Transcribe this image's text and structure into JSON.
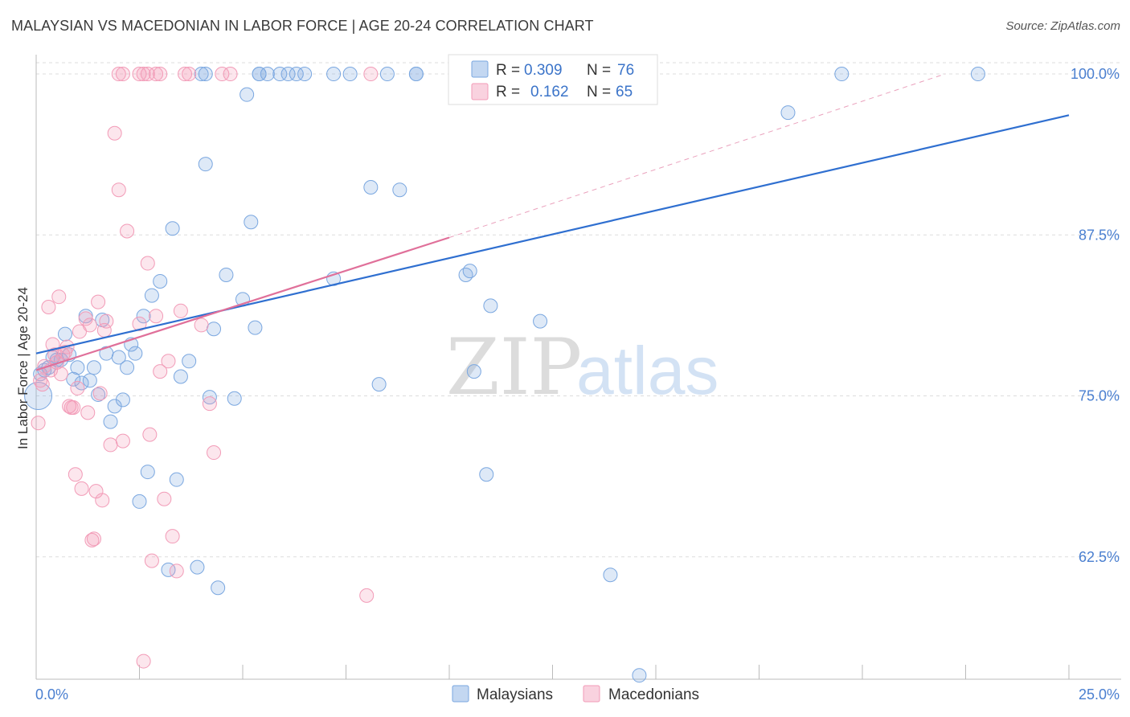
{
  "title": "MALAYSIAN VS MACEDONIAN IN LABOR FORCE | AGE 20-24 CORRELATION CHART",
  "source": "Source: ZipAtlas.com",
  "watermark": {
    "zip": "ZIP",
    "atlas": "atlas"
  },
  "chart_data": {
    "type": "scatter",
    "xlabel": "",
    "ylabel": "In Labor Force | Age 20-24",
    "xlim": [
      0,
      25
    ],
    "ylim": [
      53,
      101.5
    ],
    "x_tick_labels": [
      "0.0%",
      "25.0%"
    ],
    "y_ticks": [
      62.5,
      75.0,
      87.5,
      100.0
    ],
    "y_tick_labels": [
      "62.5%",
      "75.0%",
      "87.5%",
      "100.0%"
    ],
    "colors": {
      "malaysians": "#7aa7e0",
      "macedonians": "#f29bb7",
      "blue_line": "#2f6fd0",
      "pink_line": "#e0709a"
    },
    "legend": {
      "r_label": "R =",
      "n_label": "N =",
      "rows": [
        {
          "series": "Malaysians",
          "r": "0.309",
          "n": "76"
        },
        {
          "series": "Macedonians",
          "r": "0.162",
          "n": "65"
        }
      ]
    },
    "bottom_legend": [
      "Malaysians",
      "Macedonians"
    ],
    "trend_lines": [
      {
        "series": "Malaysians",
        "x": [
          0,
          25
        ],
        "y": [
          78.3,
          96.8
        ]
      },
      {
        "series": "Macedonians",
        "x": [
          0,
          10
        ],
        "y": [
          77.0,
          87.3
        ]
      },
      {
        "series": "Macedonians-extended",
        "x": [
          10,
          22
        ],
        "y": [
          87.3,
          100.0
        ]
      }
    ],
    "series": [
      {
        "name": "Malaysians",
        "x": [
          0.1,
          0.2,
          0.3,
          0.4,
          0.5,
          0.6,
          0.7,
          0.8,
          0.9,
          1.0,
          1.1,
          1.2,
          1.3,
          1.4,
          1.5,
          1.6,
          1.7,
          1.8,
          1.9,
          2.0,
          2.1,
          2.2,
          2.3,
          2.4,
          2.5,
          2.6,
          2.7,
          2.8,
          3.0,
          3.2,
          3.3,
          3.4,
          3.5,
          3.7,
          3.9,
          4.1,
          4.2,
          4.3,
          4.4,
          4.6,
          4.8,
          5.0,
          5.1,
          5.2,
          5.3,
          5.4,
          5.6,
          5.9,
          6.1,
          6.3,
          6.5,
          7.2,
          7.6,
          8.1,
          8.3,
          8.5,
          8.8,
          9.2,
          10.4,
          10.5,
          10.6,
          10.9,
          11.0,
          11.5,
          12.2,
          13.9,
          14.6,
          18.2,
          19.5,
          22.8,
          4.0,
          4.1,
          5.4,
          7.2,
          9.2,
          0.05
        ],
        "y": [
          76.7,
          77.0,
          77.2,
          78.0,
          77.8,
          77.8,
          79.8,
          78.2,
          76.3,
          77.2,
          76.0,
          81.2,
          76.2,
          77.2,
          75.1,
          80.9,
          78.3,
          73.0,
          74.2,
          78.0,
          74.7,
          77.2,
          79.0,
          78.3,
          66.8,
          81.2,
          69.1,
          82.8,
          83.9,
          61.5,
          88.0,
          68.5,
          76.5,
          77.7,
          61.7,
          93.0,
          74.9,
          80.2,
          60.1,
          84.4,
          74.8,
          82.5,
          98.4,
          88.5,
          80.3,
          100.0,
          100.0,
          100.0,
          100.0,
          100.0,
          100.0,
          84.1,
          100.0,
          91.2,
          75.9,
          100.0,
          91.0,
          100.0,
          84.4,
          84.7,
          76.9,
          68.9,
          82.0,
          100.0,
          80.8,
          61.1,
          53.3,
          97.0,
          100.0,
          100.0,
          100.0,
          100.0,
          100.0,
          100.0,
          100.0,
          75.0
        ]
      },
      {
        "name": "Macedonians",
        "x": [
          0.05,
          0.1,
          0.15,
          0.2,
          0.3,
          0.35,
          0.4,
          0.45,
          0.5,
          0.55,
          0.6,
          0.65,
          0.7,
          0.75,
          0.8,
          0.85,
          0.9,
          0.95,
          1.0,
          1.05,
          1.1,
          1.2,
          1.25,
          1.3,
          1.35,
          1.4,
          1.45,
          1.5,
          1.55,
          1.6,
          1.65,
          1.7,
          1.8,
          1.9,
          2.0,
          2.1,
          2.2,
          2.5,
          2.6,
          2.7,
          2.75,
          2.8,
          2.9,
          3.0,
          3.1,
          3.2,
          3.3,
          3.4,
          3.5,
          3.6,
          3.7,
          4.0,
          4.2,
          4.3,
          4.5,
          4.7,
          8.0,
          8.1,
          2.0,
          2.1,
          2.5,
          2.6,
          2.7,
          2.9,
          3.0
        ],
        "y": [
          72.9,
          76.2,
          75.9,
          77.3,
          81.9,
          77.0,
          79.0,
          78.2,
          77.6,
          82.7,
          76.7,
          78.2,
          78.4,
          78.8,
          74.2,
          74.1,
          74.1,
          68.9,
          75.6,
          80.0,
          67.8,
          81.0,
          73.7,
          80.5,
          63.8,
          63.9,
          67.6,
          82.3,
          75.2,
          66.9,
          80.1,
          80.8,
          71.2,
          95.4,
          91.0,
          71.5,
          87.8,
          80.6,
          54.4,
          85.3,
          72.0,
          62.2,
          81.2,
          76.9,
          67.0,
          77.7,
          64.1,
          61.4,
          81.6,
          100.0,
          100.0,
          80.5,
          74.4,
          70.6,
          100.0,
          100.0,
          59.5,
          100.0,
          100.0,
          100.0,
          100.0,
          100.0,
          100.0,
          100.0,
          100.0
        ]
      }
    ]
  }
}
